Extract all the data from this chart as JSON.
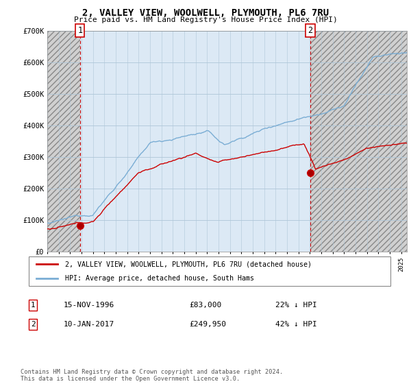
{
  "title": "2, VALLEY VIEW, WOOLWELL, PLYMOUTH, PL6 7RU",
  "subtitle": "Price paid vs. HM Land Registry's House Price Index (HPI)",
  "ylim": [
    0,
    700000
  ],
  "yticks": [
    0,
    100000,
    200000,
    300000,
    400000,
    500000,
    600000,
    700000
  ],
  "ytick_labels": [
    "£0",
    "£100K",
    "£200K",
    "£300K",
    "£400K",
    "£500K",
    "£600K",
    "£700K"
  ],
  "hpi_color": "#7aadd4",
  "price_color": "#cc0000",
  "vline_color": "#cc0000",
  "p1_year": 1996.875,
  "p1_value": 83000,
  "p2_year": 2017.04,
  "p2_value": 249950,
  "legend_label_price": "2, VALLEY VIEW, WOOLWELL, PLYMOUTH, PL6 7RU (detached house)",
  "legend_label_hpi": "HPI: Average price, detached house, South Hams",
  "row1_num": "1",
  "row1_date": "15-NOV-1996",
  "row1_price": "£83,000",
  "row1_pct": "22% ↓ HPI",
  "row2_num": "2",
  "row2_date": "10-JAN-2017",
  "row2_price": "£249,950",
  "row2_pct": "42% ↓ HPI",
  "footnote": "Contains HM Land Registry data © Crown copyright and database right 2024.\nThis data is licensed under the Open Government Licence v3.0.",
  "xmin": 1994.0,
  "xmax": 2025.5
}
